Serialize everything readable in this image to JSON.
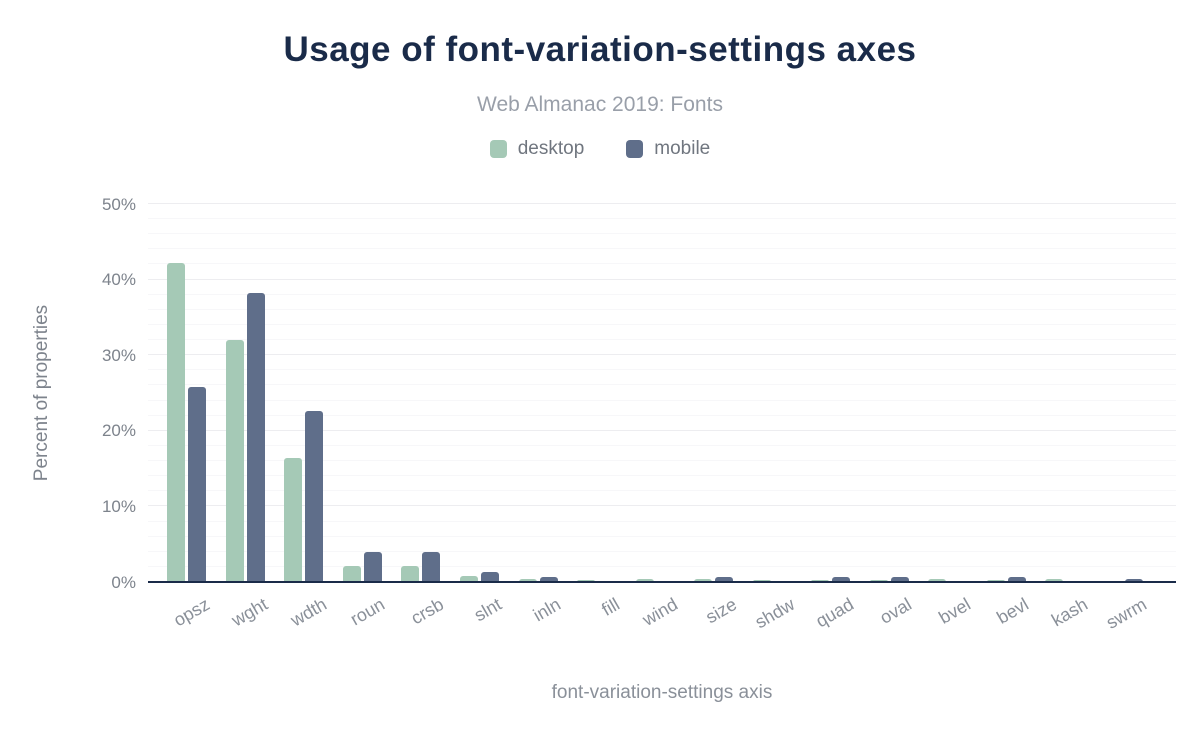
{
  "header": {
    "title": "Usage of font-variation-settings axes",
    "subtitle": "Web Almanac 2019: Fonts"
  },
  "colors": {
    "desktop": "#a5c9b6",
    "mobile": "#5f6e8a",
    "title": "#1a2b49",
    "axis_line": "#1a2b49",
    "gridline_major": "#ededf0",
    "gridline_minor": "#f7f7f9",
    "tick_text": "#7d838c"
  },
  "chart_data": {
    "type": "bar",
    "title": "Usage of font-variation-settings axes",
    "subtitle": "Web Almanac 2019: Fonts",
    "categories": [
      "opsz",
      "wght",
      "wdth",
      "roun",
      "crsb",
      "slnt",
      "inln",
      "fill",
      "wind",
      "size",
      "shdw",
      "quad",
      "oval",
      "bvel",
      "bevl",
      "kash",
      "swrm"
    ],
    "series": [
      {
        "name": "desktop",
        "color": "#a5c9b6",
        "values": [
          42.2,
          32.0,
          16.4,
          2.1,
          2.1,
          0.8,
          0.4,
          0.3,
          0.4,
          0.4,
          0.3,
          0.3,
          0.3,
          0.4,
          0.3,
          0.4,
          0.1
        ]
      },
      {
        "name": "mobile",
        "color": "#5f6e8a",
        "values": [
          25.8,
          38.2,
          22.6,
          4.0,
          4.0,
          1.3,
          0.6,
          0.0,
          0.0,
          0.6,
          0.0,
          0.6,
          0.6,
          0.0,
          0.6,
          0.0,
          0.4
        ]
      }
    ],
    "xlabel": "font-variation-settings axis",
    "ylabel": "Percent of properties",
    "ylim": [
      0,
      50
    ],
    "yticks": [
      "0%",
      "10%",
      "20%",
      "30%",
      "40%",
      "50%"
    ],
    "ytick_step": 10,
    "grid": {
      "major_step": 10,
      "minor_step": 2
    },
    "legend_position": "top",
    "bar_orientation": "vertical"
  }
}
